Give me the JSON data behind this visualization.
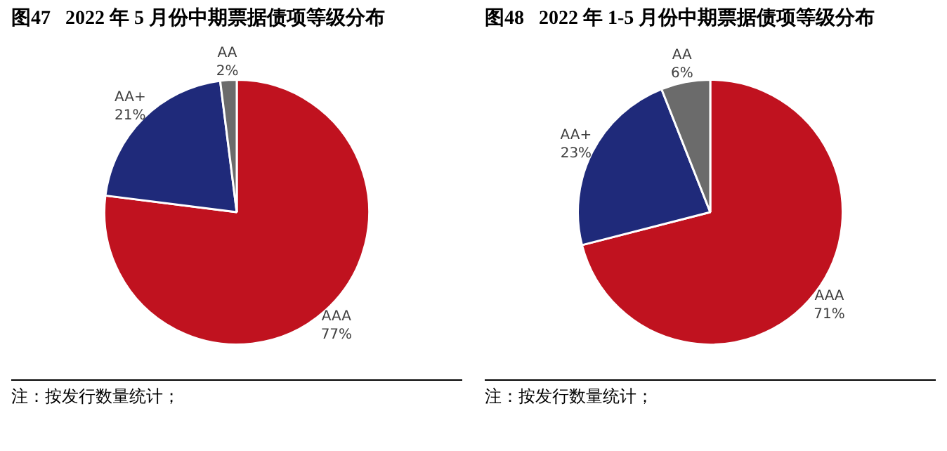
{
  "chart_data": [
    {
      "type": "pie",
      "title": "图47   2022 年 5 月份中期票据债项等级分布",
      "categories": [
        "AAA",
        "AA+",
        "AA"
      ],
      "values": [
        77,
        21,
        2
      ],
      "value_labels": [
        "77%",
        "21%",
        "2%"
      ],
      "colors": [
        "#c0121f",
        "#1f2a7a",
        "#6b6b6b"
      ],
      "annotations": [
        "注：按发行数量统计；"
      ]
    },
    {
      "type": "pie",
      "title": "图48   2022 年 1-5 月份中期票据债项等级分布",
      "categories": [
        "AAA",
        "AA+",
        "AA"
      ],
      "values": [
        71,
        23,
        6
      ],
      "value_labels": [
        "71%",
        "23%",
        "6%"
      ],
      "colors": [
        "#c0121f",
        "#1f2a7a",
        "#6b6b6b"
      ],
      "annotations": [
        "注：按发行数量统计；"
      ]
    }
  ]
}
